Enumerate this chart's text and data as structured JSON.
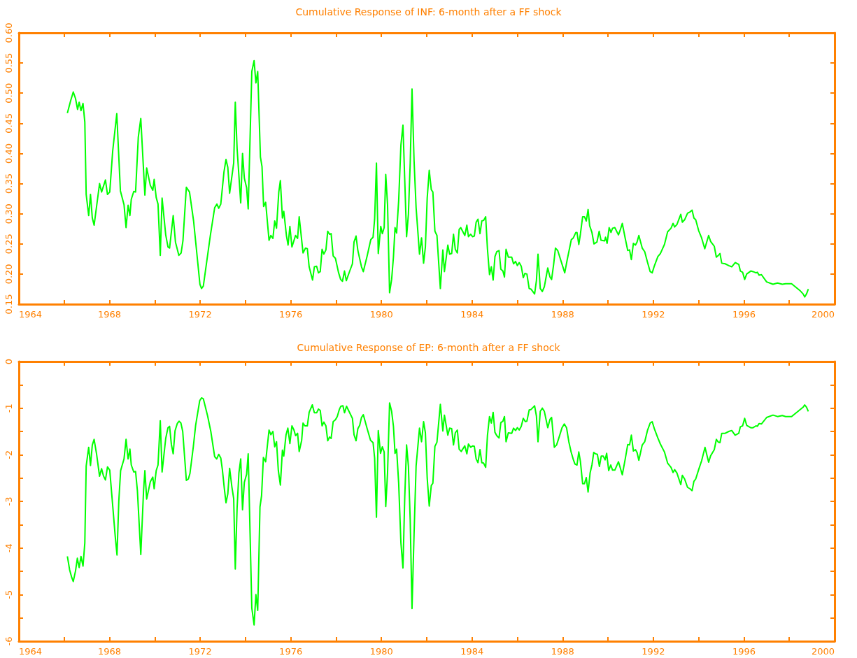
{
  "chart_data": [
    {
      "type": "line",
      "title": "Cumulative Response of INF: 6-month after a FF shock",
      "color": "#00ff00",
      "xlim": [
        1964,
        2000
      ],
      "xticks": [
        1964,
        {
          "value": 1966,
          "label": null
        },
        1968,
        {
          "value": 1970,
          "label": null
        },
        1972,
        {
          "value": 1974,
          "label": null
        },
        1976,
        {
          "value": 1978,
          "label": null
        },
        1980,
        {
          "value": 1982,
          "label": null
        },
        1984,
        {
          "value": 1986,
          "label": null
        },
        1988,
        {
          "value": 1990,
          "label": null
        },
        1992,
        {
          "value": 1994,
          "label": null
        },
        1996,
        {
          "value": 1998,
          "label": null
        },
        2000
      ],
      "ylim": [
        0.15,
        0.6
      ],
      "yticks": [
        {
          "value": 0.15,
          "label": "0.15"
        },
        {
          "value": 0.2,
          "label": "0.20"
        },
        {
          "value": 0.25,
          "label": "0.25"
        },
        {
          "value": 0.3,
          "label": "0.30"
        },
        {
          "value": 0.35,
          "label": "0.35"
        },
        {
          "value": 0.4,
          "label": "0.40"
        },
        {
          "value": 0.45,
          "label": "0.45"
        },
        {
          "value": 0.5,
          "label": "0.50"
        },
        {
          "value": 0.55,
          "label": "0.55"
        },
        {
          "value": 0.6,
          "label": "0.60"
        }
      ],
      "x": [
        1966.14,
        1966.28,
        1966.4,
        1966.5,
        1966.59,
        1966.66,
        1966.74,
        1966.83,
        1966.91,
        1966.97,
        1967.08,
        1967.16,
        1967.24,
        1967.32,
        1967.56,
        1967.65,
        1967.82,
        1967.91,
        1968.01,
        1968.14,
        1968.32,
        1968.48,
        1968.64,
        1968.73,
        1968.82,
        1968.9,
        1968.96,
        1969.07,
        1969.15,
        1969.27,
        1969.38,
        1969.56,
        1969.64,
        1969.8,
        1969.91,
        1969.97,
        1970.06,
        1970.14,
        1970.24,
        1970.32,
        1970.48,
        1970.58,
        1970.65,
        1970.81,
        1970.91,
        1971.06,
        1971.16,
        1971.24,
        1971.39,
        1971.53,
        1971.71,
        1971.99,
        1972.06,
        1972.14,
        1972.45,
        1972.64,
        1972.74,
        1972.82,
        1972.91,
        1973.05,
        1973.14,
        1973.22,
        1973.3,
        1973.48,
        1973.55,
        1973.63,
        1973.79,
        1973.87,
        1973.95,
        1974.05,
        1974.12,
        1974.28,
        1974.38,
        1974.46,
        1974.54,
        1974.66,
        1974.73,
        1974.8,
        1974.89,
        1975.04,
        1975.12,
        1975.21,
        1975.29,
        1975.37,
        1975.47,
        1975.54,
        1975.63,
        1975.69,
        1975.81,
        1975.88,
        1975.96,
        1976.05,
        1976.21,
        1976.3,
        1976.37,
        1976.54,
        1976.65,
        1976.73,
        1976.81,
        1976.96,
        1977.04,
        1977.14,
        1977.22,
        1977.3,
        1977.38,
        1977.46,
        1977.55,
        1977.63,
        1977.71,
        1977.78,
        1977.87,
        1977.97,
        1978.11,
        1978.2,
        1978.28,
        1978.37,
        1978.45,
        1978.61,
        1978.72,
        1978.79,
        1978.88,
        1978.96,
        1979.12,
        1979.2,
        1979.37,
        1979.53,
        1979.63,
        1979.7,
        1979.78,
        1979.86,
        1979.97,
        1980.04,
        1980.12,
        1980.19,
        1980.27,
        1980.36,
        1980.45,
        1980.53,
        1980.6,
        1980.67,
        1980.76,
        1980.86,
        1980.95,
        1981.11,
        1981.19,
        1981.27,
        1981.35,
        1981.44,
        1981.53,
        1981.68,
        1981.77,
        1981.86,
        1981.94,
        1982.02,
        1982.11,
        1982.2,
        1982.27,
        1982.36,
        1982.45,
        1982.6,
        1982.71,
        1982.78,
        1982.93,
        1983.01,
        1983.1,
        1983.18,
        1983.26,
        1983.35,
        1983.43,
        1983.5,
        1983.68,
        1983.77,
        1983.84,
        1983.94,
        1984.02,
        1984.1,
        1984.18,
        1984.26,
        1984.35,
        1984.43,
        1984.51,
        1984.6,
        1984.68,
        1984.77,
        1984.85,
        1984.93,
        1985.01,
        1985.09,
        1985.19,
        1985.27,
        1985.36,
        1985.43,
        1985.5,
        1985.6,
        1985.75,
        1985.83,
        1985.92,
        1986,
        1986.08,
        1986.17,
        1986.26,
        1986.33,
        1986.42,
        1986.52,
        1986.6,
        1986.76,
        1986.84,
        1986.91,
        1987.01,
        1987.1,
        1987.19,
        1987.34,
        1987.44,
        1987.51,
        1987.6,
        1987.68,
        1987.78,
        1988.09,
        1988.2,
        1988.38,
        1988.47,
        1988.58,
        1988.63,
        1988.71,
        1988.78,
        1988.88,
        1988.96,
        1989.04,
        1989.12,
        1989.19,
        1989.29,
        1989.38,
        1989.51,
        1989.61,
        1989.69,
        1989.85,
        1989.89,
        1989.96,
        1990.05,
        1990.13,
        1990.2,
        1990.3,
        1990.46,
        1990.54,
        1990.63,
        1990.76,
        1990.87,
        1990.95,
        1991.03,
        1991.12,
        1991.21,
        1991.28,
        1991.36,
        1991.51,
        1991.62,
        1991.74,
        1991.86,
        1991.95,
        1992.05,
        1992.2,
        1992.31,
        1992.49,
        1992.63,
        1992.78,
        1992.87,
        1992.94,
        1993.04,
        1993.21,
        1993.28,
        1993.38,
        1993.51,
        1993.62,
        1993.71,
        1993.79,
        1993.87,
        1994,
        1994.13,
        1994.27,
        1994.44,
        1994.53,
        1994.63,
        1994.69,
        1994.78,
        1994.87,
        1994.94,
        1995.02,
        1995.17,
        1995.33,
        1995.46,
        1995.61,
        1995.77,
        1995.84,
        1995.94,
        1996.03,
        1996.12,
        1996.3,
        1996.4,
        1996.53,
        1996.59,
        1996.67,
        1996.77,
        1997,
        1997.28,
        1997.48,
        1997.69,
        1997.84,
        1998.1,
        1998.46,
        1998.61,
        1998.68,
        1998.76,
        1998.84
      ],
      "values": [
        0.467,
        0.487,
        0.502,
        0.491,
        0.473,
        0.485,
        0.471,
        0.483,
        0.452,
        0.332,
        0.297,
        0.332,
        0.293,
        0.281,
        0.35,
        0.336,
        0.356,
        0.332,
        0.336,
        0.404,
        0.466,
        0.338,
        0.315,
        0.277,
        0.314,
        0.297,
        0.324,
        0.337,
        0.336,
        0.427,
        0.458,
        0.331,
        0.376,
        0.347,
        0.339,
        0.357,
        0.327,
        0.316,
        0.231,
        0.326,
        0.265,
        0.245,
        0.243,
        0.297,
        0.253,
        0.231,
        0.235,
        0.255,
        0.344,
        0.336,
        0.288,
        0.183,
        0.176,
        0.18,
        0.264,
        0.31,
        0.316,
        0.309,
        0.316,
        0.369,
        0.39,
        0.377,
        0.334,
        0.384,
        0.485,
        0.408,
        0.318,
        0.4,
        0.359,
        0.343,
        0.308,
        0.536,
        0.554,
        0.517,
        0.536,
        0.394,
        0.378,
        0.312,
        0.319,
        0.256,
        0.264,
        0.259,
        0.288,
        0.276,
        0.336,
        0.355,
        0.293,
        0.304,
        0.263,
        0.248,
        0.279,
        0.245,
        0.264,
        0.259,
        0.295,
        0.235,
        0.243,
        0.242,
        0.212,
        0.19,
        0.212,
        0.213,
        0.202,
        0.204,
        0.241,
        0.233,
        0.24,
        0.271,
        0.266,
        0.267,
        0.23,
        0.226,
        0.202,
        0.191,
        0.188,
        0.205,
        0.189,
        0.206,
        0.217,
        0.253,
        0.263,
        0.239,
        0.212,
        0.204,
        0.23,
        0.257,
        0.261,
        0.291,
        0.384,
        0.234,
        0.279,
        0.267,
        0.277,
        0.365,
        0.315,
        0.169,
        0.191,
        0.228,
        0.277,
        0.268,
        0.321,
        0.414,
        0.447,
        0.262,
        0.299,
        0.384,
        0.507,
        0.388,
        0.31,
        0.233,
        0.26,
        0.218,
        0.245,
        0.326,
        0.372,
        0.34,
        0.336,
        0.271,
        0.264,
        0.176,
        0.24,
        0.204,
        0.248,
        0.233,
        0.234,
        0.266,
        0.241,
        0.235,
        0.274,
        0.277,
        0.264,
        0.281,
        0.262,
        0.266,
        0.262,
        0.263,
        0.286,
        0.291,
        0.267,
        0.288,
        0.289,
        0.295,
        0.241,
        0.199,
        0.212,
        0.19,
        0.229,
        0.237,
        0.239,
        0.208,
        0.205,
        0.195,
        0.241,
        0.228,
        0.228,
        0.217,
        0.221,
        0.214,
        0.219,
        0.213,
        0.194,
        0.201,
        0.2,
        0.176,
        0.175,
        0.167,
        0.189,
        0.233,
        0.176,
        0.171,
        0.179,
        0.21,
        0.195,
        0.191,
        0.216,
        0.243,
        0.239,
        0.202,
        0.224,
        0.257,
        0.26,
        0.269,
        0.269,
        0.249,
        0.266,
        0.295,
        0.295,
        0.288,
        0.307,
        0.28,
        0.269,
        0.25,
        0.253,
        0.271,
        0.256,
        0.255,
        0.261,
        0.251,
        0.277,
        0.269,
        0.276,
        0.277,
        0.265,
        0.273,
        0.284,
        0.259,
        0.239,
        0.24,
        0.224,
        0.251,
        0.248,
        0.253,
        0.264,
        0.243,
        0.237,
        0.22,
        0.204,
        0.202,
        0.214,
        0.229,
        0.234,
        0.249,
        0.27,
        0.276,
        0.284,
        0.278,
        0.282,
        0.299,
        0.286,
        0.29,
        0.301,
        0.303,
        0.306,
        0.293,
        0.29,
        0.272,
        0.26,
        0.242,
        0.264,
        0.254,
        0.249,
        0.246,
        0.228,
        0.231,
        0.234,
        0.218,
        0.217,
        0.214,
        0.212,
        0.219,
        0.216,
        0.205,
        0.203,
        0.191,
        0.2,
        0.205,
        0.204,
        0.202,
        0.203,
        0.198,
        0.199,
        0.187,
        0.183,
        0.185,
        0.183,
        0.184,
        0.184,
        0.173,
        0.167,
        0.162,
        0.167,
        0.175
      ]
    },
    {
      "type": "line",
      "title": "Cumulative Response of EP: 6-month after a FF shock",
      "color": "#00ff00",
      "xlim": [
        1964,
        2000
      ],
      "xticks": [
        1964,
        {
          "value": 1966,
          "label": null
        },
        1968,
        {
          "value": 1970,
          "label": null
        },
        1972,
        {
          "value": 1974,
          "label": null
        },
        1976,
        {
          "value": 1978,
          "label": null
        },
        1980,
        {
          "value": 1982,
          "label": null
        },
        1984,
        {
          "value": 1986,
          "label": null
        },
        1988,
        {
          "value": 1990,
          "label": null
        },
        1992,
        {
          "value": 1994,
          "label": null
        },
        1996,
        {
          "value": 1998,
          "label": null
        },
        2000
      ],
      "ylim": [
        -6,
        0
      ],
      "yticks": [
        -6,
        {
          "value": -5.5,
          "label": null
        },
        -5,
        {
          "value": -4.5,
          "label": null
        },
        -4,
        {
          "value": -3.5,
          "label": null
        },
        -3,
        {
          "value": -2.5,
          "label": null
        },
        -2,
        {
          "value": -1.5,
          "label": null
        },
        -1,
        {
          "value": -0.5,
          "label": null
        },
        0
      ],
      "x": [
        1966.14,
        1966.24,
        1966.33,
        1966.4,
        1966.5,
        1966.58,
        1966.66,
        1966.74,
        1966.83,
        1966.91,
        1966.97,
        1967.08,
        1967.16,
        1967.24,
        1967.32,
        1967.43,
        1967.56,
        1967.65,
        1967.73,
        1967.82,
        1967.91,
        1968.01,
        1968.14,
        1968.25,
        1968.33,
        1968.41,
        1968.49,
        1968.64,
        1968.73,
        1968.82,
        1968.9,
        1968.96,
        1969.07,
        1969.15,
        1969.23,
        1969.38,
        1969.5,
        1969.56,
        1969.64,
        1969.8,
        1969.91,
        1969.97,
        1970.06,
        1970.14,
        1970.24,
        1970.32,
        1970.48,
        1970.58,
        1970.65,
        1970.73,
        1970.81,
        1970.89,
        1970.99,
        1971.07,
        1971.15,
        1971.23,
        1971.39,
        1971.48,
        1971.55,
        1971.7,
        1971.8,
        1971.98,
        1972.06,
        1972.14,
        1972.33,
        1972.47,
        1972.64,
        1972.73,
        1972.82,
        1972.91,
        1972.98,
        1973.07,
        1973.14,
        1973.22,
        1973.3,
        1973.4,
        1973.48,
        1973.55,
        1973.63,
        1973.71,
        1973.79,
        1973.87,
        1973.95,
        1974.05,
        1974.12,
        1974.28,
        1974.38,
        1974.46,
        1974.54,
        1974.64,
        1974.71,
        1974.79,
        1974.89,
        1975.04,
        1975.12,
        1975.21,
        1975.29,
        1975.37,
        1975.45,
        1975.54,
        1975.63,
        1975.69,
        1975.79,
        1975.87,
        1975.96,
        1976.05,
        1976.14,
        1976.21,
        1976.3,
        1976.37,
        1976.48,
        1976.54,
        1976.62,
        1976.73,
        1976.81,
        1976.95,
        1977.04,
        1977.14,
        1977.22,
        1977.3,
        1977.38,
        1977.46,
        1977.55,
        1977.63,
        1977.71,
        1977.78,
        1977.87,
        1977.97,
        1978.05,
        1978.14,
        1978.21,
        1978.3,
        1978.37,
        1978.46,
        1978.61,
        1978.72,
        1978.79,
        1978.88,
        1978.96,
        1979.04,
        1979.12,
        1979.2,
        1979.37,
        1979.52,
        1979.63,
        1979.7,
        1979.78,
        1979.86,
        1979.96,
        1980.04,
        1980.12,
        1980.19,
        1980.27,
        1980.36,
        1980.45,
        1980.53,
        1980.6,
        1980.67,
        1980.76,
        1980.86,
        1980.95,
        1981.03,
        1981.11,
        1981.19,
        1981.27,
        1981.35,
        1981.44,
        1981.53,
        1981.68,
        1981.77,
        1981.86,
        1981.94,
        1982.02,
        1982.11,
        1982.2,
        1982.27,
        1982.36,
        1982.45,
        1982.6,
        1982.71,
        1982.78,
        1982.93,
        1983.01,
        1983.1,
        1983.18,
        1983.26,
        1983.35,
        1983.43,
        1983.52,
        1983.68,
        1983.77,
        1983.84,
        1983.94,
        1984.02,
        1984.1,
        1984.18,
        1984.26,
        1984.35,
        1984.43,
        1984.51,
        1984.6,
        1984.68,
        1984.77,
        1984.85,
        1984.93,
        1985.01,
        1985.09,
        1985.19,
        1985.27,
        1985.36,
        1985.43,
        1985.5,
        1985.6,
        1985.75,
        1985.83,
        1985.92,
        1986,
        1986.08,
        1986.17,
        1986.26,
        1986.35,
        1986.42,
        1986.52,
        1986.6,
        1986.76,
        1986.84,
        1986.91,
        1987.01,
        1987.1,
        1987.19,
        1987.34,
        1987.44,
        1987.51,
        1987.63,
        1987.73,
        1987.83,
        1987.97,
        1988.07,
        1988.17,
        1988.27,
        1988.37,
        1988.46,
        1988.54,
        1988.63,
        1988.71,
        1988.78,
        1988.88,
        1988.96,
        1989.04,
        1989.12,
        1989.21,
        1989.29,
        1989.37,
        1989.45,
        1989.53,
        1989.62,
        1989.7,
        1989.79,
        1989.87,
        1989.94,
        1990.03,
        1990.12,
        1990.2,
        1990.3,
        1990.46,
        1990.54,
        1990.63,
        1990.76,
        1990.87,
        1990.95,
        1991.03,
        1991.12,
        1991.21,
        1991.28,
        1991.36,
        1991.51,
        1991.62,
        1991.74,
        1991.86,
        1991.95,
        1992.05,
        1992.2,
        1992.31,
        1992.49,
        1992.63,
        1992.78,
        1992.87,
        1992.94,
        1993.04,
        1993.21,
        1993.28,
        1993.38,
        1993.51,
        1993.62,
        1993.71,
        1993.79,
        1993.87,
        1994,
        1994.13,
        1994.28,
        1994.44,
        1994.53,
        1994.69,
        1994.78,
        1994.87,
        1994.94,
        1995.02,
        1995.17,
        1995.33,
        1995.46,
        1995.61,
        1995.77,
        1995.84,
        1995.94,
        1996.03,
        1996.12,
        1996.3,
        1996.4,
        1996.53,
        1996.59,
        1996.67,
        1996.77,
        1997,
        1997.28,
        1997.48,
        1997.69,
        1997.84,
        1998.1,
        1998.46,
        1998.61,
        1998.68,
        1998.76,
        1998.84
      ],
      "values": [
        -4.18,
        -4.47,
        -4.63,
        -4.72,
        -4.49,
        -4.22,
        -4.42,
        -4.18,
        -4.39,
        -3.89,
        -2.24,
        -1.84,
        -2.23,
        -1.79,
        -1.67,
        -1.99,
        -2.46,
        -2.3,
        -2.45,
        -2.54,
        -2.26,
        -2.33,
        -3.09,
        -3.74,
        -4.15,
        -2.99,
        -2.34,
        -2.09,
        -1.67,
        -2.09,
        -1.88,
        -2.22,
        -2.37,
        -2.36,
        -2.77,
        -4.14,
        -2.79,
        -2.34,
        -2.95,
        -2.58,
        -2.48,
        -2.73,
        -2.34,
        -2.22,
        -1.27,
        -2.37,
        -1.65,
        -1.42,
        -1.39,
        -1.78,
        -1.98,
        -1.49,
        -1.33,
        -1.28,
        -1.32,
        -1.5,
        -2.55,
        -2.52,
        -2.4,
        -1.82,
        -1.37,
        -0.84,
        -0.78,
        -0.8,
        -1.17,
        -1.5,
        -2.04,
        -2.09,
        -1.99,
        -2.07,
        -2.32,
        -2.74,
        -3.03,
        -2.84,
        -2.29,
        -2.69,
        -2.94,
        -4.45,
        -3.14,
        -2.39,
        -2.09,
        -3.18,
        -2.59,
        -2.42,
        -1.98,
        -5.29,
        -5.65,
        -5,
        -5.34,
        -3.12,
        -2.88,
        -2.06,
        -2.15,
        -1.47,
        -1.57,
        -1.5,
        -1.83,
        -1.72,
        -2.34,
        -2.65,
        -1.9,
        -2.03,
        -1.57,
        -1.43,
        -1.76,
        -1.38,
        -1.47,
        -1.59,
        -1.54,
        -1.93,
        -1.69,
        -1.32,
        -1.38,
        -1.38,
        -1.09,
        -0.93,
        -1.1,
        -1.1,
        -1.02,
        -1.05,
        -1.38,
        -1.3,
        -1.38,
        -1.7,
        -1.62,
        -1.65,
        -1.29,
        -1.25,
        -1.18,
        -1.03,
        -0.96,
        -0.95,
        -1.1,
        -0.96,
        -1.11,
        -1.22,
        -1.57,
        -1.7,
        -1.44,
        -1.37,
        -1.2,
        -1.14,
        -1.44,
        -1.69,
        -1.74,
        -2.07,
        -3.34,
        -1.48,
        -1.97,
        -1.83,
        -1.94,
        -3.11,
        -2.39,
        -0.89,
        -1.07,
        -1.39,
        -1.97,
        -1.88,
        -2.6,
        -3.89,
        -4.43,
        -2.9,
        -1.79,
        -2.24,
        -3.4,
        -5.3,
        -3.7,
        -2.24,
        -1.43,
        -1.72,
        -1.29,
        -1.53,
        -2.5,
        -3.1,
        -2.66,
        -2.61,
        -1.82,
        -1.73,
        -0.92,
        -1.49,
        -1.15,
        -1.58,
        -1.43,
        -1.44,
        -1.79,
        -1.53,
        -1.47,
        -1.88,
        -1.93,
        -1.81,
        -1.98,
        -1.77,
        -1.84,
        -1.81,
        -1.82,
        -2.09,
        -2.17,
        -1.89,
        -2.17,
        -2.18,
        -2.27,
        -1.58,
        -1.18,
        -1.32,
        -1.09,
        -1.52,
        -1.59,
        -1.64,
        -1.31,
        -1.28,
        -1.18,
        -1.72,
        -1.53,
        -1.54,
        -1.43,
        -1.48,
        -1.42,
        -1.47,
        -1.39,
        -1.22,
        -1.29,
        -1.28,
        -1.04,
        -1.03,
        -0.95,
        -1.17,
        -1.72,
        -1.07,
        -1,
        -1.07,
        -1.42,
        -1.24,
        -1.2,
        -1.84,
        -1.79,
        -1.64,
        -1.42,
        -1.34,
        -1.42,
        -1.72,
        -1.94,
        -2.09,
        -2.2,
        -2.22,
        -1.94,
        -2.14,
        -2.62,
        -2.62,
        -2.49,
        -2.8,
        -2.39,
        -2.22,
        -1.95,
        -1.98,
        -1.99,
        -2.25,
        -2.03,
        -2.03,
        -2.11,
        -1.97,
        -2.34,
        -2.22,
        -2.33,
        -2.33,
        -2.15,
        -2.28,
        -2.43,
        -2.09,
        -1.78,
        -1.79,
        -1.58,
        -1.92,
        -1.89,
        -1.95,
        -2.12,
        -1.79,
        -1.72,
        -1.48,
        -1.32,
        -1.29,
        -1.45,
        -1.64,
        -1.77,
        -1.94,
        -2.18,
        -2.27,
        -2.38,
        -2.32,
        -2.39,
        -2.64,
        -2.44,
        -2.52,
        -2.7,
        -2.73,
        -2.77,
        -2.57,
        -2.52,
        -2.32,
        -2.13,
        -1.84,
        -2.16,
        -2.02,
        -1.89,
        -1.67,
        -1.73,
        -1.74,
        -1.54,
        -1.54,
        -1.5,
        -1.48,
        -1.58,
        -1.54,
        -1.4,
        -1.38,
        -1.22,
        -1.37,
        -1.42,
        -1.42,
        -1.38,
        -1.39,
        -1.33,
        -1.34,
        -1.2,
        -1.15,
        -1.18,
        -1.16,
        -1.18,
        -1.18,
        -1.04,
        -0.98,
        -0.93,
        -0.98,
        -1.07
      ]
    }
  ]
}
